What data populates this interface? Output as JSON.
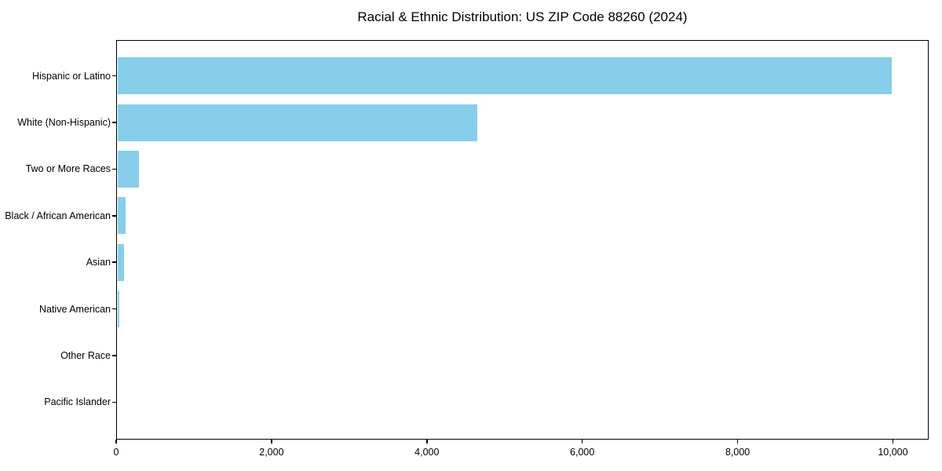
{
  "chart_data": {
    "type": "bar",
    "orientation": "horizontal",
    "title": "Racial & Ethnic Distribution: US ZIP Code 88260 (2024)",
    "categories": [
      "Hispanic or Latino",
      "White (Non-Hispanic)",
      "Two or More Races",
      "Black / African American",
      "Asian",
      "Native American",
      "Other Race",
      "Pacific Islander"
    ],
    "values": [
      9985,
      4650,
      295,
      125,
      105,
      40,
      12,
      3
    ],
    "xlabel": "",
    "ylabel": "",
    "xlim": [
      0,
      10460
    ],
    "xticks": [
      0,
      2000,
      4000,
      6000,
      8000,
      10000
    ],
    "xtick_labels": [
      "0",
      "2,000",
      "4,000",
      "6,000",
      "8,000",
      "10,000"
    ],
    "grid": false,
    "bar_color": "#87CEEB",
    "axis_color": "#000000",
    "text_color": "#000000",
    "background_color": "#FFFFFF"
  }
}
